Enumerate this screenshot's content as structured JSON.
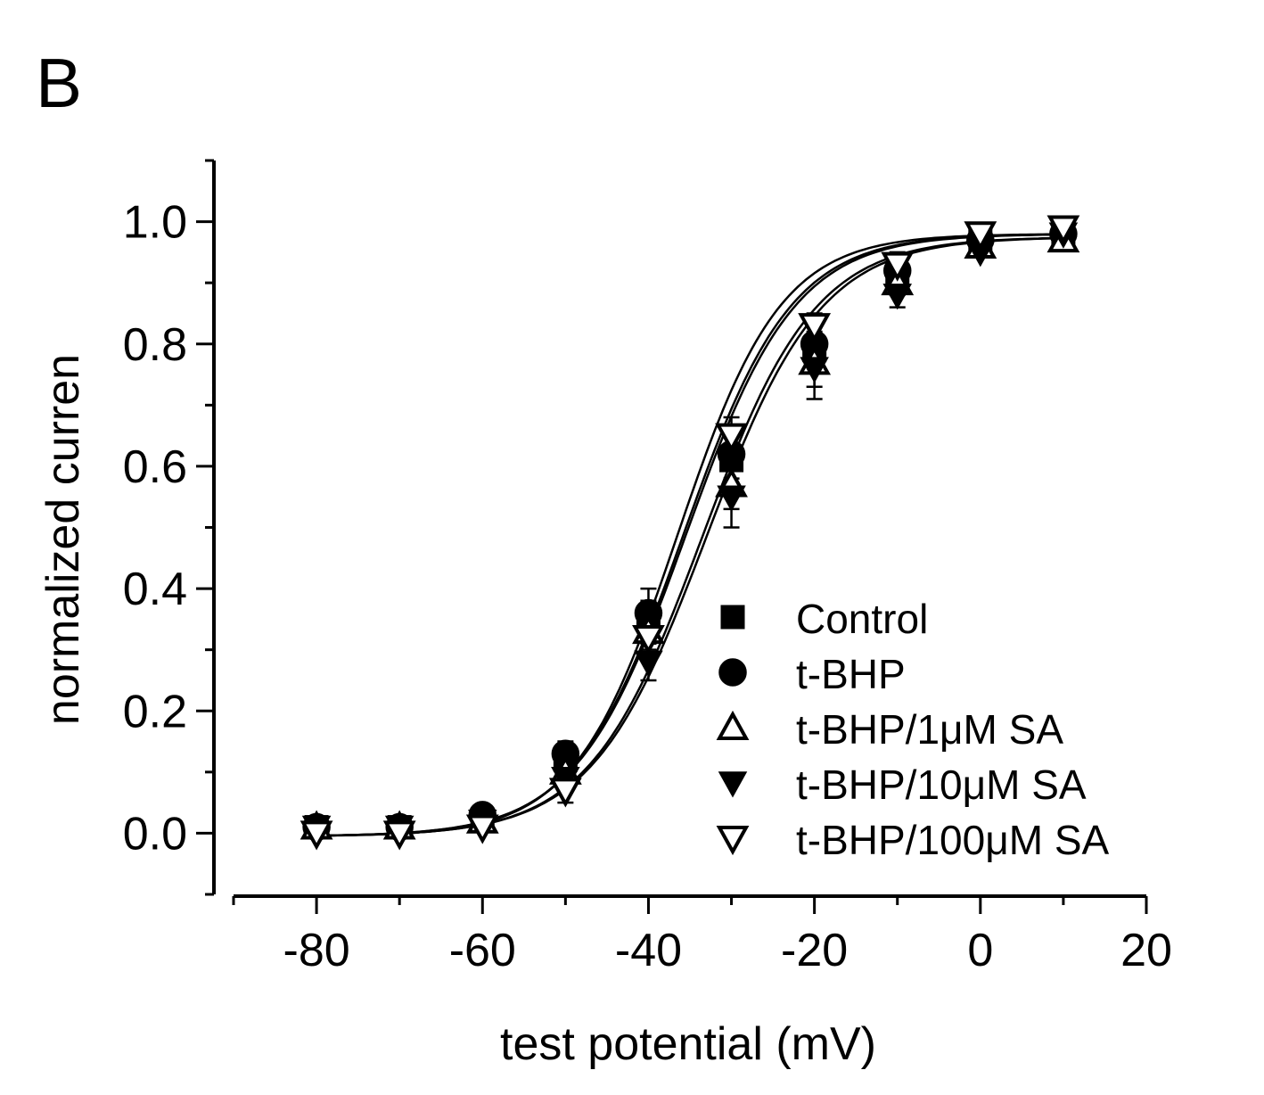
{
  "panel_label": "B",
  "chart_data": {
    "type": "scatter",
    "title": "",
    "xlabel": "test potential (mV)",
    "ylabel": "normalized curren",
    "xlim": [
      -90,
      20
    ],
    "ylim": [
      -0.1,
      1.1
    ],
    "xticks": [
      -80,
      -60,
      -40,
      -20,
      0,
      20
    ],
    "xtick_labels": [
      "-80",
      "-60",
      "-40",
      "-20",
      "0",
      "20"
    ],
    "yticks": [
      0.0,
      0.2,
      0.4,
      0.6,
      0.8,
      1.0
    ],
    "ytick_labels": [
      "0.0",
      "0.2",
      "0.4",
      "0.6",
      "0.8",
      "1.0"
    ],
    "grid": false,
    "legend_position": "bottom-right",
    "x": [
      -80,
      -70,
      -60,
      -50,
      -40,
      -30,
      -20,
      -10,
      0,
      10
    ],
    "series": [
      {
        "name": "Control",
        "marker": "square-filled",
        "values": [
          0.01,
          0.01,
          0.02,
          0.12,
          0.35,
          0.61,
          0.79,
          0.91,
          0.97,
          0.98
        ],
        "err": [
          0.01,
          0.01,
          0.01,
          0.02,
          0.03,
          0.04,
          0.03,
          0.02,
          0.01,
          0.01
        ],
        "fit": {
          "v_half": -35.5,
          "k": 6.6,
          "top": 0.98,
          "bottom": -0.005
        }
      },
      {
        "name": "t-BHP",
        "marker": "circle-filled",
        "values": [
          0.01,
          0.01,
          0.03,
          0.13,
          0.36,
          0.62,
          0.8,
          0.92,
          0.97,
          0.98
        ],
        "err": [
          0.01,
          0.01,
          0.01,
          0.02,
          0.04,
          0.04,
          0.03,
          0.02,
          0.01,
          0.01
        ],
        "fit": {
          "v_half": -35.8,
          "k": 6.5,
          "top": 0.98,
          "bottom": -0.005
        }
      },
      {
        "name": "t-BHP/1μM SA",
        "marker": "triangle-up-open",
        "values": [
          0.01,
          0.01,
          0.02,
          0.1,
          0.33,
          0.57,
          0.77,
          0.9,
          0.96,
          0.97
        ],
        "err": [
          0.01,
          0.01,
          0.01,
          0.02,
          0.03,
          0.04,
          0.04,
          0.02,
          0.01,
          0.01
        ],
        "fit": {
          "v_half": -33.5,
          "k": 6.8,
          "top": 0.975,
          "bottom": -0.005
        }
      },
      {
        "name": "t-BHP/10μM SA",
        "marker": "triangle-down-filled",
        "values": [
          0.01,
          0.01,
          0.02,
          0.09,
          0.28,
          0.55,
          0.76,
          0.88,
          0.95,
          0.98
        ],
        "err": [
          0.01,
          0.01,
          0.01,
          0.02,
          0.03,
          0.05,
          0.05,
          0.02,
          0.01,
          0.01
        ],
        "fit": {
          "v_half": -33.0,
          "k": 6.9,
          "top": 0.975,
          "bottom": -0.005
        }
      },
      {
        "name": "t-BHP/100μM SA",
        "marker": "triangle-down-open",
        "values": [
          0.0,
          0.0,
          0.01,
          0.07,
          0.32,
          0.65,
          0.83,
          0.93,
          0.98,
          0.99
        ],
        "err": [
          0.01,
          0.01,
          0.01,
          0.02,
          0.03,
          0.03,
          0.02,
          0.02,
          0.01,
          0.01
        ],
        "fit": {
          "v_half": -36.5,
          "k": 6.2,
          "top": 0.98,
          "bottom": -0.005
        }
      }
    ]
  }
}
